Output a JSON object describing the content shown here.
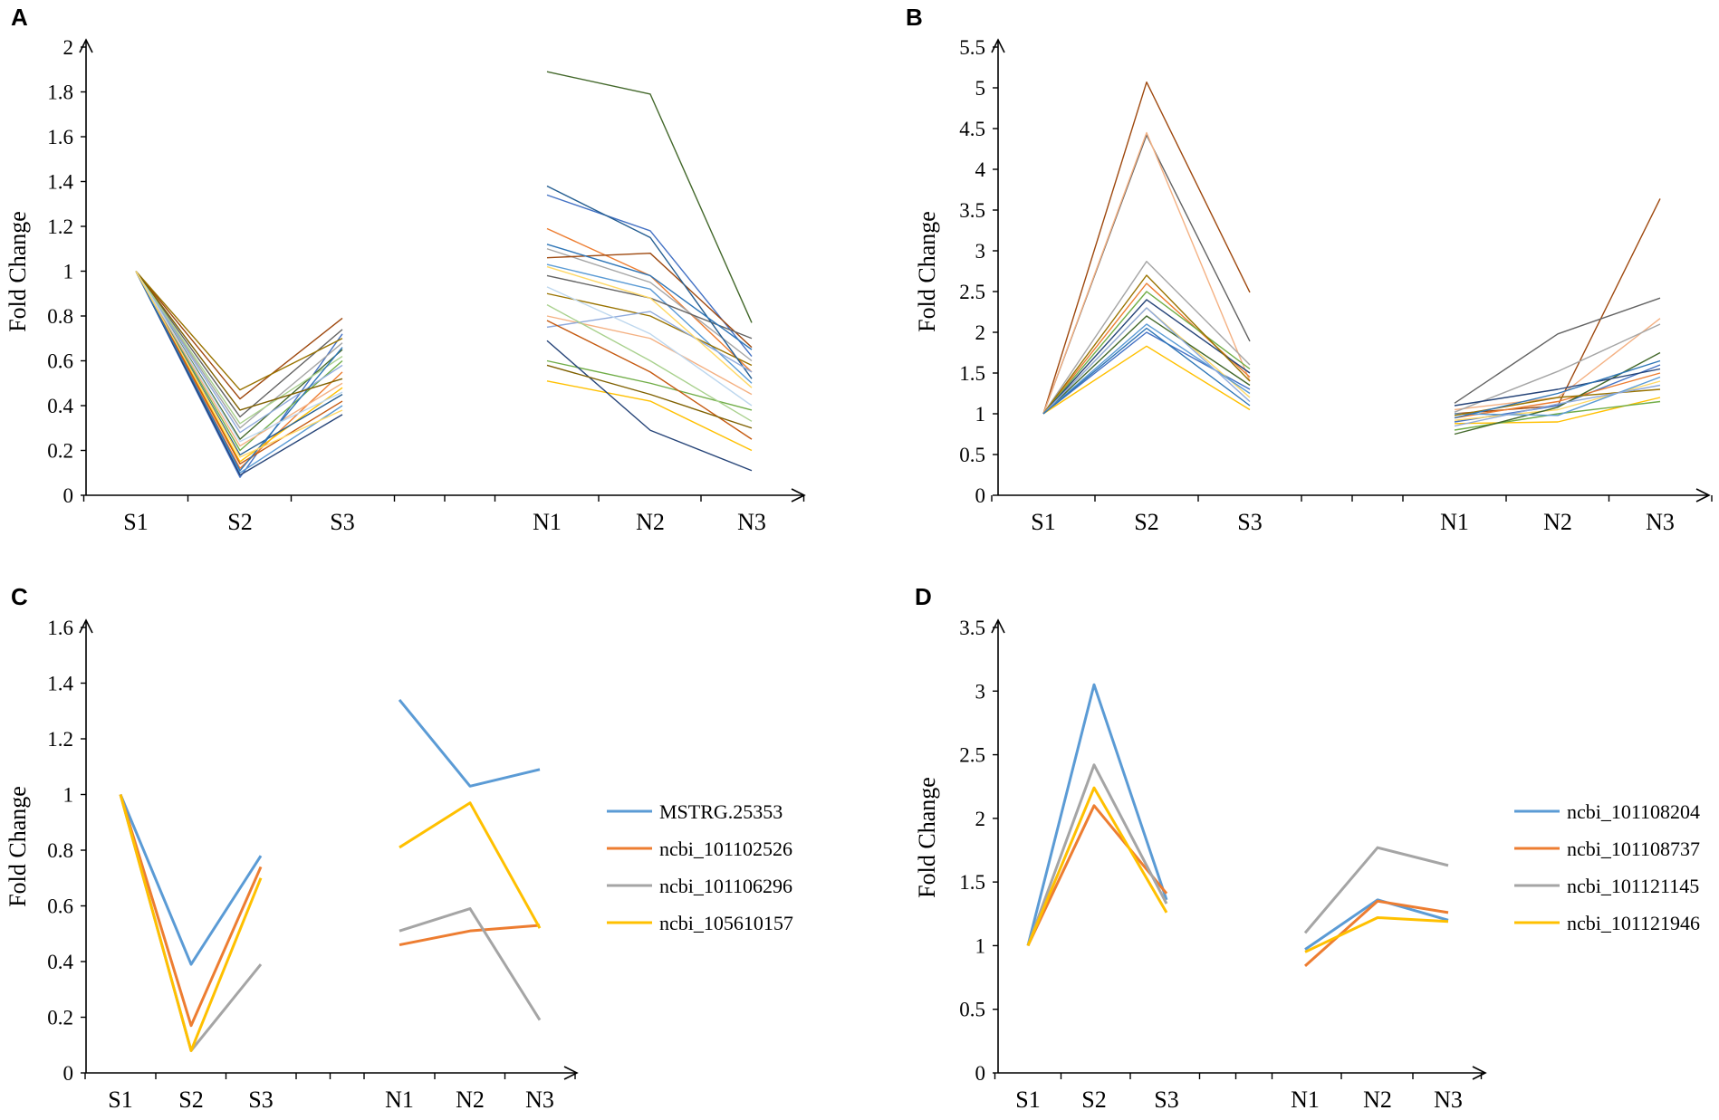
{
  "chart_data": [
    {
      "panel": "A",
      "type": "line",
      "ylabel": "Fold Change",
      "ylim": [
        0,
        2
      ],
      "yticks": [
        "0",
        "0.2",
        "0.4",
        "0.6",
        "0.8",
        "1",
        "1.2",
        "1.4",
        "1.6",
        "1.8",
        "2"
      ],
      "categories": [
        "S1",
        "S2",
        "S3",
        "N1",
        "N2",
        "N3"
      ],
      "groups": [
        [
          0,
          1,
          2
        ],
        [
          3,
          4,
          5
        ]
      ],
      "series": [
        {
          "color": "#4472C4",
          "values": [
            1,
            0.08,
            0.72,
            1.34,
            1.18,
            0.62
          ]
        },
        {
          "color": "#ED7D31",
          "values": [
            1,
            0.12,
            0.55,
            1.19,
            0.98,
            0.55
          ]
        },
        {
          "color": "#A5A5A5",
          "values": [
            1,
            0.3,
            0.68,
            1.1,
            0.95,
            0.6
          ]
        },
        {
          "color": "#FFC000",
          "values": [
            1,
            0.15,
            0.48,
            0.51,
            0.42,
            0.2
          ]
        },
        {
          "color": "#5B9BD5",
          "values": [
            1,
            0.1,
            0.4,
            1.03,
            0.92,
            0.5
          ]
        },
        {
          "color": "#70AD47",
          "values": [
            1,
            0.2,
            0.6,
            0.6,
            0.5,
            0.38
          ]
        },
        {
          "color": "#264478",
          "values": [
            1,
            0.09,
            0.36,
            0.69,
            0.29,
            0.11
          ]
        },
        {
          "color": "#9E480E",
          "values": [
            1,
            0.43,
            0.79,
            1.06,
            1.08,
            0.66
          ]
        },
        {
          "color": "#636363",
          "values": [
            1,
            0.35,
            0.74,
            0.98,
            0.88,
            0.7
          ]
        },
        {
          "color": "#997300",
          "values": [
            1,
            0.47,
            0.7,
            0.9,
            0.8,
            0.58
          ]
        },
        {
          "color": "#43682B",
          "values": [
            1,
            0.25,
            0.65,
            1.89,
            1.79,
            0.77
          ]
        },
        {
          "color": "#255E91",
          "values": [
            1,
            0.18,
            0.45,
            1.38,
            1.15,
            0.52
          ]
        },
        {
          "color": "#F4B183",
          "values": [
            1,
            0.22,
            0.5,
            0.8,
            0.7,
            0.45
          ]
        },
        {
          "color": "#8FAADC",
          "values": [
            1,
            0.28,
            0.58,
            0.75,
            0.82,
            0.55
          ]
        },
        {
          "color": "#A9D18E",
          "values": [
            1,
            0.32,
            0.62,
            0.85,
            0.6,
            0.33
          ]
        },
        {
          "color": "#C55A11",
          "values": [
            1,
            0.14,
            0.42,
            0.78,
            0.55,
            0.25
          ]
        },
        {
          "color": "#2E75B6",
          "values": [
            1,
            0.11,
            0.66,
            1.12,
            0.98,
            0.65
          ]
        },
        {
          "color": "#7F6000",
          "values": [
            1,
            0.38,
            0.52,
            0.58,
            0.45,
            0.3
          ]
        },
        {
          "color": "#BDD7EE",
          "values": [
            1,
            0.24,
            0.46,
            0.93,
            0.72,
            0.4
          ]
        },
        {
          "color": "#FFD966",
          "values": [
            1,
            0.17,
            0.38,
            1.02,
            0.88,
            0.48
          ]
        }
      ]
    },
    {
      "panel": "B",
      "type": "line",
      "ylabel": "Fold Change",
      "ylim": [
        0,
        5.5
      ],
      "yticks": [
        "0",
        "0.5",
        "1",
        "1.5",
        "2",
        "2.5",
        "3",
        "3.5",
        "4",
        "4.5",
        "5",
        "5.5"
      ],
      "categories": [
        "S1",
        "S2",
        "S3",
        "N1",
        "N2",
        "N3"
      ],
      "groups": [
        [
          0,
          1,
          2
        ],
        [
          3,
          4,
          5
        ]
      ],
      "series": [
        {
          "color": "#9E480E",
          "values": [
            1,
            5.07,
            2.49,
            1.0,
            1.1,
            3.64
          ]
        },
        {
          "color": "#636363",
          "values": [
            1,
            4.42,
            1.89,
            1.13,
            1.98,
            2.42
          ]
        },
        {
          "color": "#F4B183",
          "values": [
            1,
            4.45,
            1.4,
            1.05,
            1.2,
            2.17
          ]
        },
        {
          "color": "#A5A5A5",
          "values": [
            1,
            2.87,
            1.6,
            1.02,
            1.52,
            2.1
          ]
        },
        {
          "color": "#4472C4",
          "values": [
            1,
            2.0,
            1.3,
            0.9,
            1.1,
            1.6
          ]
        },
        {
          "color": "#ED7D31",
          "values": [
            1,
            2.6,
            1.45,
            0.95,
            1.15,
            1.5
          ]
        },
        {
          "color": "#FFC000",
          "values": [
            1,
            1.83,
            1.05,
            0.88,
            0.9,
            1.2
          ]
        },
        {
          "color": "#FFD966",
          "values": [
            1,
            2.3,
            1.2,
            0.92,
            1.05,
            1.4
          ]
        },
        {
          "color": "#70AD47",
          "values": [
            1,
            2.5,
            1.55,
            0.8,
            1.0,
            1.15
          ]
        },
        {
          "color": "#43682B",
          "values": [
            1,
            2.2,
            1.35,
            0.75,
            1.08,
            1.75
          ]
        },
        {
          "color": "#5B9BD5",
          "values": [
            1,
            2.1,
            1.25,
            1.0,
            0.98,
            1.45
          ]
        },
        {
          "color": "#264478",
          "values": [
            1,
            2.4,
            1.5,
            1.1,
            1.3,
            1.55
          ]
        },
        {
          "color": "#997300",
          "values": [
            1,
            2.7,
            1.4,
            0.98,
            1.2,
            1.3
          ]
        },
        {
          "color": "#8FAADC",
          "values": [
            1,
            2.3,
            1.15,
            0.85,
            1.12,
            1.35
          ]
        },
        {
          "color": "#2E75B6",
          "values": [
            1,
            2.05,
            1.1,
            0.95,
            1.25,
            1.65
          ]
        }
      ]
    },
    {
      "panel": "C",
      "type": "line",
      "ylabel": "Fold Change",
      "ylim": [
        0,
        1.6
      ],
      "yticks": [
        "0",
        "0.2",
        "0.4",
        "0.6",
        "0.8",
        "1",
        "1.2",
        "1.4",
        "1.6"
      ],
      "categories": [
        "S1",
        "S2",
        "S3",
        "N1",
        "N2",
        "N3"
      ],
      "groups": [
        [
          0,
          1,
          2
        ],
        [
          3,
          4,
          5
        ]
      ],
      "legend_position": "right",
      "series": [
        {
          "name": "MSTRG.25353",
          "color": "#5B9BD5",
          "values": [
            1,
            0.39,
            0.78,
            1.34,
            1.03,
            1.09
          ]
        },
        {
          "name": "ncbi_101102526",
          "color": "#ED7D31",
          "values": [
            1,
            0.17,
            0.74,
            0.46,
            0.51,
            0.53
          ]
        },
        {
          "name": "ncbi_101106296",
          "color": "#A5A5A5",
          "values": [
            1,
            0.08,
            0.39,
            0.51,
            0.59,
            0.19
          ]
        },
        {
          "name": "ncbi_105610157",
          "color": "#FFC000",
          "values": [
            1,
            0.08,
            0.7,
            0.81,
            0.97,
            0.52
          ]
        }
      ]
    },
    {
      "panel": "D",
      "type": "line",
      "ylabel": "Fold Change",
      "ylim": [
        0,
        3.5
      ],
      "yticks": [
        "0",
        "0.5",
        "1",
        "1.5",
        "2",
        "2.5",
        "3",
        "3.5"
      ],
      "categories": [
        "S1",
        "S2",
        "S3",
        "N1",
        "N2",
        "N3"
      ],
      "groups": [
        [
          0,
          1,
          2
        ],
        [
          3,
          4,
          5
        ]
      ],
      "legend_position": "right",
      "series": [
        {
          "name": "ncbi_101108204",
          "color": "#5B9BD5",
          "values": [
            1,
            3.05,
            1.36,
            0.97,
            1.36,
            1.2
          ]
        },
        {
          "name": "ncbi_101108737",
          "color": "#ED7D31",
          "values": [
            1,
            2.1,
            1.41,
            0.84,
            1.35,
            1.26
          ]
        },
        {
          "name": "ncbi_101121145",
          "color": "#A5A5A5",
          "values": [
            1,
            2.42,
            1.33,
            1.1,
            1.77,
            1.63
          ]
        },
        {
          "name": "ncbi_101121946",
          "color": "#FFC000",
          "values": [
            1,
            2.24,
            1.26,
            0.95,
            1.22,
            1.19
          ]
        }
      ]
    }
  ]
}
